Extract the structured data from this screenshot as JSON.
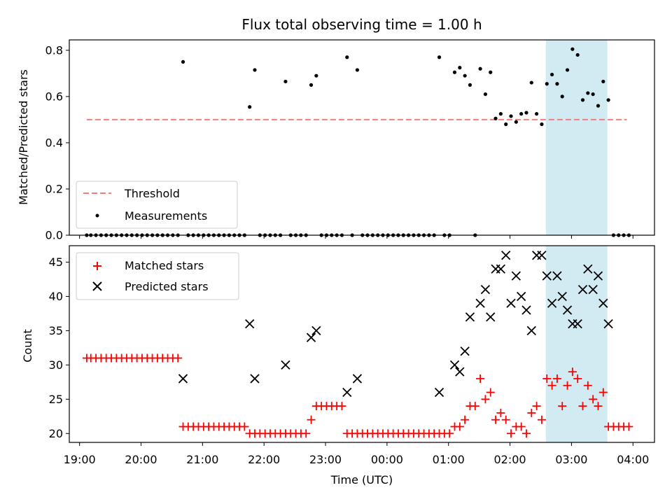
{
  "chart_data": [
    {
      "type": "scatter",
      "title": "Flux total observing time = 1.00 h",
      "xlabel": "",
      "ylabel": "Matched/Predicted stars",
      "ylim": [
        0,
        0.845
      ],
      "xlim": [
        "18:50",
        "04:21"
      ],
      "yticks": [
        0.0,
        0.2,
        0.4,
        0.6,
        0.8
      ],
      "ytick_labels": [
        "0.0",
        "0.2",
        "0.4",
        "0.6",
        "0.8"
      ],
      "highlight_span": [
        "02:35",
        "03:35"
      ],
      "threshold": {
        "name": "Threshold",
        "value": 0.5,
        "x_range": [
          "19:07",
          "03:54"
        ],
        "color": "#f08080"
      },
      "legend_position": "lower-left",
      "series": [
        {
          "name": "Measurements",
          "color": "#000000",
          "points": [
            [
              "19:07",
              0
            ],
            [
              "19:11",
              0
            ],
            [
              "19:16",
              0
            ],
            [
              "19:21",
              0
            ],
            [
              "19:26",
              0
            ],
            [
              "19:31",
              0
            ],
            [
              "19:36",
              0
            ],
            [
              "19:41",
              0
            ],
            [
              "19:46",
              0
            ],
            [
              "19:51",
              0
            ],
            [
              "19:56",
              0
            ],
            [
              "20:01",
              0
            ],
            [
              "20:06",
              0
            ],
            [
              "20:11",
              0
            ],
            [
              "20:16",
              0
            ],
            [
              "20:21",
              0
            ],
            [
              "20:26",
              0
            ],
            [
              "20:31",
              0
            ],
            [
              "20:36",
              0
            ],
            [
              "20:41",
              0.75
            ],
            [
              "20:46",
              0
            ],
            [
              "20:51",
              0
            ],
            [
              "20:56",
              0
            ],
            [
              "21:01",
              0
            ],
            [
              "21:06",
              0
            ],
            [
              "21:11",
              0
            ],
            [
              "21:16",
              0
            ],
            [
              "21:21",
              0
            ],
            [
              "21:26",
              0
            ],
            [
              "21:31",
              0
            ],
            [
              "21:36",
              0
            ],
            [
              "21:41",
              0
            ],
            [
              "21:46",
              0.555
            ],
            [
              "21:51",
              0.715
            ],
            [
              "21:56",
              0
            ],
            [
              "22:01",
              0
            ],
            [
              "22:06",
              0
            ],
            [
              "22:11",
              0
            ],
            [
              "22:16",
              0
            ],
            [
              "22:21",
              0.665
            ],
            [
              "22:26",
              0
            ],
            [
              "22:31",
              0
            ],
            [
              "22:36",
              0
            ],
            [
              "22:41",
              0
            ],
            [
              "22:46",
              0.65
            ],
            [
              "22:51",
              0.69
            ],
            [
              "22:56",
              0
            ],
            [
              "23:01",
              0
            ],
            [
              "23:06",
              0
            ],
            [
              "23:11",
              0
            ],
            [
              "23:16",
              0
            ],
            [
              "23:21",
              0.77
            ],
            [
              "23:26",
              0
            ],
            [
              "23:31",
              0.715
            ],
            [
              "23:36",
              0
            ],
            [
              "23:41",
              0
            ],
            [
              "23:46",
              0
            ],
            [
              "23:51",
              0
            ],
            [
              "23:56",
              0
            ],
            [
              "00:01",
              0
            ],
            [
              "00:06",
              0
            ],
            [
              "00:11",
              0
            ],
            [
              "00:16",
              0
            ],
            [
              "00:21",
              0
            ],
            [
              "00:26",
              0
            ],
            [
              "00:31",
              0
            ],
            [
              "00:36",
              0
            ],
            [
              "00:41",
              0
            ],
            [
              "00:46",
              0
            ],
            [
              "00:51",
              0.77
            ],
            [
              "00:56",
              0
            ],
            [
              "01:01",
              0
            ],
            [
              "01:06",
              0.705
            ],
            [
              "01:11",
              0.725
            ],
            [
              "01:16",
              0.69
            ],
            [
              "01:21",
              0.65
            ],
            [
              "01:26",
              0
            ],
            [
              "01:31",
              0.72
            ],
            [
              "01:36",
              0.61
            ],
            [
              "01:41",
              0.705
            ],
            [
              "01:46",
              0.505
            ],
            [
              "01:51",
              0.525
            ],
            [
              "01:56",
              0.48
            ],
            [
              "02:01",
              0.515
            ],
            [
              "02:06",
              0.49
            ],
            [
              "02:11",
              0.525
            ],
            [
              "02:16",
              0.53
            ],
            [
              "02:21",
              0.66
            ],
            [
              "02:26",
              0.525
            ],
            [
              "02:31",
              0.48
            ],
            [
              "02:36",
              0.655
            ],
            [
              "02:41",
              0.695
            ],
            [
              "02:46",
              0.655
            ],
            [
              "02:51",
              0.6
            ],
            [
              "02:56",
              0.715
            ],
            [
              "03:01",
              0.805
            ],
            [
              "03:06",
              0.78
            ],
            [
              "03:11",
              0.585
            ],
            [
              "03:16",
              0.615
            ],
            [
              "03:21",
              0.61
            ],
            [
              "03:26",
              0.56
            ],
            [
              "03:31",
              0.665
            ],
            [
              "03:36",
              0.585
            ],
            [
              "03:41",
              0
            ],
            [
              "03:46",
              0
            ],
            [
              "03:51",
              0
            ],
            [
              "03:56",
              0
            ]
          ]
        }
      ]
    },
    {
      "type": "scatter",
      "title": "",
      "xlabel": "Time (UTC)",
      "ylabel": "Count",
      "ylim": [
        18.7,
        47.4
      ],
      "xlim": [
        "18:50",
        "04:21"
      ],
      "yticks": [
        20,
        25,
        30,
        35,
        40,
        45
      ],
      "ytick_labels": [
        "20",
        "25",
        "30",
        "35",
        "40",
        "45"
      ],
      "xticks": [
        "19:00",
        "20:00",
        "21:00",
        "22:00",
        "23:00",
        "00:00",
        "01:00",
        "02:00",
        "03:00",
        "04:00"
      ],
      "xtick_labels": [
        "19:00",
        "20:00",
        "21:00",
        "22:00",
        "23:00",
        "00:00",
        "01:00",
        "02:00",
        "03:00",
        "04:00"
      ],
      "highlight_span": [
        "02:35",
        "03:35"
      ],
      "legend_position": "upper-left",
      "series": [
        {
          "name": "Matched stars",
          "color": "#ff0000",
          "marker": "plus",
          "points": [
            [
              "19:07",
              31
            ],
            [
              "19:11",
              31
            ],
            [
              "19:16",
              31
            ],
            [
              "19:21",
              31
            ],
            [
              "19:26",
              31
            ],
            [
              "19:31",
              31
            ],
            [
              "19:36",
              31
            ],
            [
              "19:41",
              31
            ],
            [
              "19:46",
              31
            ],
            [
              "19:51",
              31
            ],
            [
              "19:56",
              31
            ],
            [
              "20:01",
              31
            ],
            [
              "20:06",
              31
            ],
            [
              "20:11",
              31
            ],
            [
              "20:16",
              31
            ],
            [
              "20:21",
              31
            ],
            [
              "20:26",
              31
            ],
            [
              "20:31",
              31
            ],
            [
              "20:36",
              31
            ],
            [
              "20:41",
              21
            ],
            [
              "20:46",
              21
            ],
            [
              "20:51",
              21
            ],
            [
              "20:56",
              21
            ],
            [
              "21:01",
              21
            ],
            [
              "21:06",
              21
            ],
            [
              "21:11",
              21
            ],
            [
              "21:16",
              21
            ],
            [
              "21:21",
              21
            ],
            [
              "21:26",
              21
            ],
            [
              "21:31",
              21
            ],
            [
              "21:36",
              21
            ],
            [
              "21:41",
              21
            ],
            [
              "21:46",
              20
            ],
            [
              "21:51",
              20
            ],
            [
              "21:56",
              20
            ],
            [
              "22:01",
              20
            ],
            [
              "22:06",
              20
            ],
            [
              "22:11",
              20
            ],
            [
              "22:16",
              20
            ],
            [
              "22:21",
              20
            ],
            [
              "22:26",
              20
            ],
            [
              "22:31",
              20
            ],
            [
              "22:36",
              20
            ],
            [
              "22:41",
              20
            ],
            [
              "22:46",
              22
            ],
            [
              "22:51",
              24
            ],
            [
              "22:56",
              24
            ],
            [
              "23:01",
              24
            ],
            [
              "23:06",
              24
            ],
            [
              "23:11",
              24
            ],
            [
              "23:16",
              24
            ],
            [
              "23:21",
              20
            ],
            [
              "23:26",
              20
            ],
            [
              "23:31",
              20
            ],
            [
              "23:36",
              20
            ],
            [
              "23:41",
              20
            ],
            [
              "23:46",
              20
            ],
            [
              "23:51",
              20
            ],
            [
              "23:56",
              20
            ],
            [
              "00:01",
              20
            ],
            [
              "00:06",
              20
            ],
            [
              "00:11",
              20
            ],
            [
              "00:16",
              20
            ],
            [
              "00:21",
              20
            ],
            [
              "00:26",
              20
            ],
            [
              "00:31",
              20
            ],
            [
              "00:36",
              20
            ],
            [
              "00:41",
              20
            ],
            [
              "00:46",
              20
            ],
            [
              "00:51",
              20
            ],
            [
              "00:56",
              20
            ],
            [
              "01:01",
              20
            ],
            [
              "01:06",
              21
            ],
            [
              "01:11",
              21
            ],
            [
              "01:16",
              22
            ],
            [
              "01:21",
              24
            ],
            [
              "01:26",
              24
            ],
            [
              "01:31",
              28
            ],
            [
              "01:36",
              25
            ],
            [
              "01:41",
              26
            ],
            [
              "01:46",
              22
            ],
            [
              "01:51",
              23
            ],
            [
              "01:56",
              22
            ],
            [
              "02:01",
              20
            ],
            [
              "02:06",
              21
            ],
            [
              "02:11",
              21
            ],
            [
              "02:16",
              20
            ],
            [
              "02:21",
              23
            ],
            [
              "02:26",
              24
            ],
            [
              "02:31",
              22
            ],
            [
              "02:36",
              28
            ],
            [
              "02:41",
              27
            ],
            [
              "02:46",
              28
            ],
            [
              "02:51",
              24
            ],
            [
              "02:56",
              27
            ],
            [
              "03:01",
              29
            ],
            [
              "03:06",
              28
            ],
            [
              "03:11",
              24
            ],
            [
              "03:16",
              27
            ],
            [
              "03:21",
              25
            ],
            [
              "03:26",
              24
            ],
            [
              "03:31",
              26
            ],
            [
              "03:36",
              21
            ],
            [
              "03:41",
              21
            ],
            [
              "03:46",
              21
            ],
            [
              "03:51",
              21
            ],
            [
              "03:56",
              21
            ]
          ]
        },
        {
          "name": "Predicted stars",
          "color": "#000000",
          "marker": "x",
          "points": [
            [
              "20:41",
              28
            ],
            [
              "21:46",
              36
            ],
            [
              "21:51",
              28
            ],
            [
              "22:21",
              30
            ],
            [
              "22:46",
              34
            ],
            [
              "22:51",
              35
            ],
            [
              "23:21",
              26
            ],
            [
              "23:31",
              28
            ],
            [
              "00:51",
              26
            ],
            [
              "01:06",
              30
            ],
            [
              "01:11",
              29
            ],
            [
              "01:16",
              32
            ],
            [
              "01:21",
              37
            ],
            [
              "01:31",
              39
            ],
            [
              "01:36",
              41
            ],
            [
              "01:41",
              37
            ],
            [
              "01:46",
              44
            ],
            [
              "01:51",
              44
            ],
            [
              "01:56",
              46
            ],
            [
              "02:01",
              39
            ],
            [
              "02:06",
              43
            ],
            [
              "02:11",
              40
            ],
            [
              "02:16",
              38
            ],
            [
              "02:21",
              35
            ],
            [
              "02:26",
              46
            ],
            [
              "02:31",
              46
            ],
            [
              "02:36",
              43
            ],
            [
              "02:41",
              39
            ],
            [
              "02:46",
              43
            ],
            [
              "02:51",
              40
            ],
            [
              "02:56",
              38
            ],
            [
              "03:01",
              36
            ],
            [
              "03:06",
              36
            ],
            [
              "03:11",
              41
            ],
            [
              "03:16",
              44
            ],
            [
              "03:21",
              41
            ],
            [
              "03:26",
              43
            ],
            [
              "03:31",
              39
            ],
            [
              "03:36",
              36
            ]
          ]
        }
      ]
    }
  ]
}
